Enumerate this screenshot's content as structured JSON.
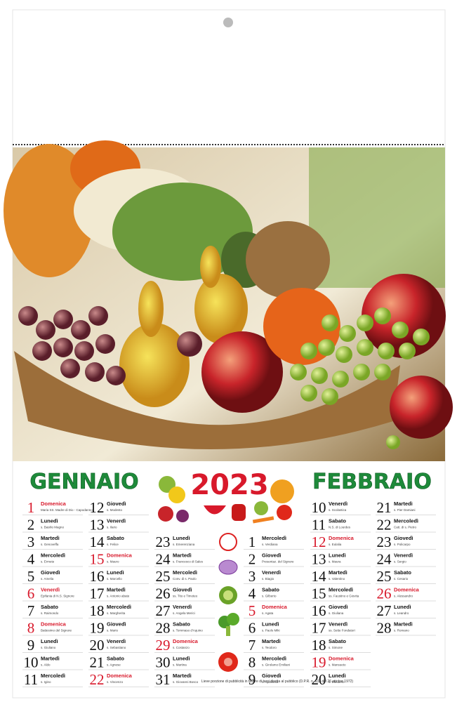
{
  "header": {
    "year": "2023"
  },
  "months": [
    {
      "name": "GENNAIO",
      "days": [
        {
          "day": 1,
          "weekday": "Domenica",
          "saint": "Maria SS. Madre di Dio - Capodanno",
          "festive": true
        },
        {
          "day": 2,
          "weekday": "Lunedì",
          "saint": "s. Basilio Magno"
        },
        {
          "day": 3,
          "weekday": "Martedì",
          "saint": "s. Genoveffa"
        },
        {
          "day": 4,
          "weekday": "Mercoledì",
          "saint": "s. Ermete"
        },
        {
          "day": 5,
          "weekday": "Giovedì",
          "saint": "s. Amelia"
        },
        {
          "day": 6,
          "weekday": "Venerdì",
          "saint": "Epifania di N.S. Signore",
          "festive": true
        },
        {
          "day": 7,
          "weekday": "Sabato",
          "saint": "s. Raimondo"
        },
        {
          "day": 8,
          "weekday": "Domenica",
          "saint": "Battesimo del Signore",
          "festive": true
        },
        {
          "day": 9,
          "weekday": "Lunedì",
          "saint": "s. Giuliano"
        },
        {
          "day": 10,
          "weekday": "Martedì",
          "saint": "s. Aldo"
        },
        {
          "day": 11,
          "weekday": "Mercoledì",
          "saint": "s. Igino"
        },
        {
          "day": 12,
          "weekday": "Giovedì",
          "saint": "s. Modesto"
        },
        {
          "day": 13,
          "weekday": "Venerdì",
          "saint": "s. Ilario"
        },
        {
          "day": 14,
          "weekday": "Sabato",
          "saint": "s. Felice"
        },
        {
          "day": 15,
          "weekday": "Domenica",
          "saint": "s. Mauro",
          "festive": true
        },
        {
          "day": 16,
          "weekday": "Lunedì",
          "saint": "s. Marcello"
        },
        {
          "day": 17,
          "weekday": "Martedì",
          "saint": "s. Antonio abate"
        },
        {
          "day": 18,
          "weekday": "Mercoledì",
          "saint": "s. Margherita"
        },
        {
          "day": 19,
          "weekday": "Giovedì",
          "saint": "s. Mario"
        },
        {
          "day": 20,
          "weekday": "Venerdì",
          "saint": "s. Sebastiano"
        },
        {
          "day": 21,
          "weekday": "Sabato",
          "saint": "s. Agnese"
        },
        {
          "day": 22,
          "weekday": "Domenica",
          "saint": "s. Vincenzo",
          "festive": true
        },
        {
          "day": 23,
          "weekday": "Lunedì",
          "saint": "s. Emerenziana"
        },
        {
          "day": 24,
          "weekday": "Martedì",
          "saint": "s. Francesco di Sales"
        },
        {
          "day": 25,
          "weekday": "Mercoledì",
          "saint": "Conv. di s. Paolo"
        },
        {
          "day": 26,
          "weekday": "Giovedì",
          "saint": "ss. Tito e Timoteo"
        },
        {
          "day": 27,
          "weekday": "Venerdì",
          "saint": "s. Angela Merici"
        },
        {
          "day": 28,
          "weekday": "Sabato",
          "saint": "s. Tommaso d'Aquino"
        },
        {
          "day": 29,
          "weekday": "Domenica",
          "saint": "s. Costanzo",
          "festive": true
        },
        {
          "day": 30,
          "weekday": "Lunedì",
          "saint": "s. Martina"
        },
        {
          "day": 31,
          "weekday": "Martedì",
          "saint": "s. Giovanni Bosco"
        }
      ]
    },
    {
      "name": "FEBBRAIO",
      "days": [
        {
          "day": 1,
          "weekday": "Mercoledì",
          "saint": "s. Verdiana"
        },
        {
          "day": 2,
          "weekday": "Giovedì",
          "saint": "Presentaz. del Signore"
        },
        {
          "day": 3,
          "weekday": "Venerdì",
          "saint": "s. Biagio"
        },
        {
          "day": 4,
          "weekday": "Sabato",
          "saint": "s. Gilberto"
        },
        {
          "day": 5,
          "weekday": "Domenica",
          "saint": "s. Agata",
          "festive": true
        },
        {
          "day": 6,
          "weekday": "Lunedì",
          "saint": "s. Paolo Miki"
        },
        {
          "day": 7,
          "weekday": "Martedì",
          "saint": "s. Teodoro"
        },
        {
          "day": 8,
          "weekday": "Mercoledì",
          "saint": "s. Girolamo Emiliani"
        },
        {
          "day": 9,
          "weekday": "Giovedì",
          "saint": "s. Apollonia"
        },
        {
          "day": 10,
          "weekday": "Venerdì",
          "saint": "s. Scolastica"
        },
        {
          "day": 11,
          "weekday": "Sabato",
          "saint": "N.S. di Lourdes"
        },
        {
          "day": 12,
          "weekday": "Domenica",
          "saint": "s. Eulalia",
          "festive": true
        },
        {
          "day": 13,
          "weekday": "Lunedì",
          "saint": "s. Maura"
        },
        {
          "day": 14,
          "weekday": "Martedì",
          "saint": "s. Valentino"
        },
        {
          "day": 15,
          "weekday": "Mercoledì",
          "saint": "ss. Faustino e Giovita"
        },
        {
          "day": 16,
          "weekday": "Giovedì",
          "saint": "s. Giuliana"
        },
        {
          "day": 17,
          "weekday": "Venerdì",
          "saint": "ss. Sette Fondatori"
        },
        {
          "day": 18,
          "weekday": "Sabato",
          "saint": "s. Simone"
        },
        {
          "day": 19,
          "weekday": "Domenica",
          "saint": "s. Mansueto",
          "festive": true
        },
        {
          "day": 20,
          "weekday": "Lunedì",
          "saint": "s. Eleuterio"
        },
        {
          "day": 21,
          "weekday": "Martedì",
          "saint": "s. Pier Damiani"
        },
        {
          "day": 22,
          "weekday": "Mercoledì",
          "saint": "Catt. di s. Pietro"
        },
        {
          "day": 23,
          "weekday": "Giovedì",
          "saint": "s. Policarpo"
        },
        {
          "day": 24,
          "weekday": "Venerdì",
          "saint": "s. Sergio"
        },
        {
          "day": 25,
          "weekday": "Sabato",
          "saint": "s. Cesario"
        },
        {
          "day": 26,
          "weekday": "Domenica",
          "saint": "s. Alessandro",
          "festive": true
        },
        {
          "day": 27,
          "weekday": "Lunedì",
          "saint": "s. Leandro"
        },
        {
          "day": 28,
          "weekday": "Martedì",
          "saint": "s. Romano"
        }
      ]
    }
  ],
  "footer": {
    "note": "Lieve porzione di pubblicità in favore di terzi diretta al pubblico (D.P.R. n. 633 del 26 ottobre 1972)"
  }
}
